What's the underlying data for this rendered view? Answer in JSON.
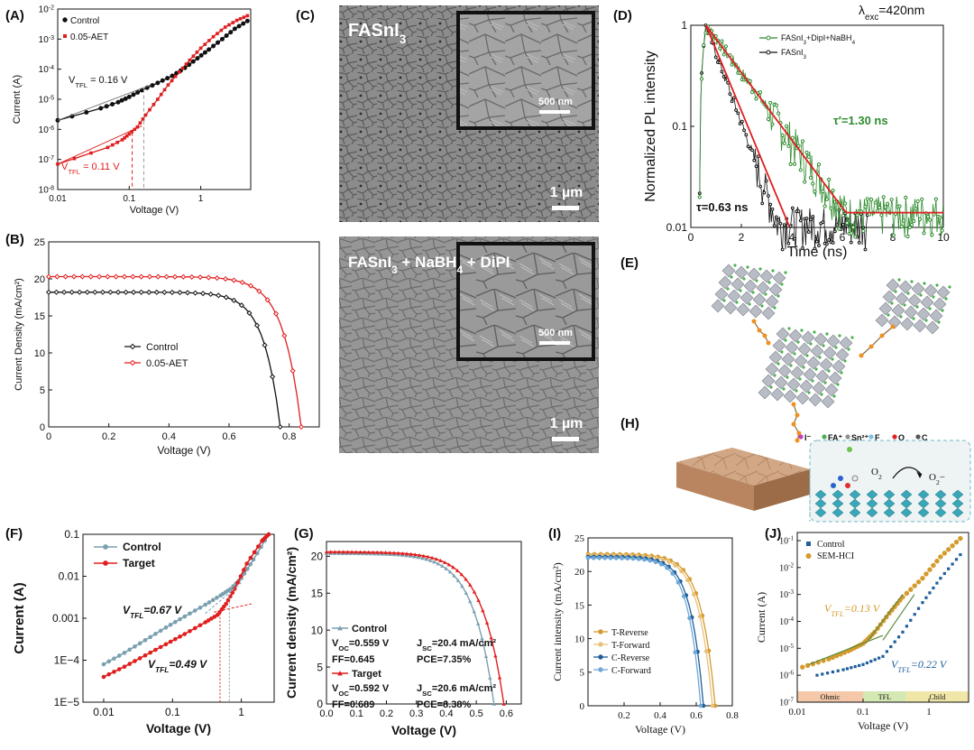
{
  "panel_labels": [
    "(A)",
    "(B)",
    "(C)",
    "(D)",
    "(E)",
    "(H)",
    "(F)",
    "(G)",
    "(I)",
    "(J)"
  ],
  "colors": {
    "control": "#111111",
    "red": "#e01e1e",
    "green": "#2e8b2e",
    "gray_blue": "#7aa0b0",
    "gold": "#d49a2c",
    "light_gold": "#e8c07a",
    "dark_blue": "#1f5e9a",
    "light_blue": "#6fa8d8"
  },
  "chart_data": [
    {
      "id": "A",
      "type": "scatter",
      "xlabel": "Voltage (V)",
      "ylabel": "Current (A)",
      "x_scale": "log",
      "y_scale": "log",
      "xlim": [
        0.01,
        5
      ],
      "ylim": [
        1e-08,
        0.01
      ],
      "xticks": [
        "0.01",
        "0.1",
        "1"
      ],
      "yticks": [
        "10-8",
        "10-7",
        "10-6",
        "10-5",
        "10-4",
        "10-3",
        "10-2"
      ],
      "series": [
        {
          "name": "Control",
          "x": [
            0.01,
            0.04,
            0.07,
            0.1,
            0.15,
            0.25,
            0.4,
            0.6,
            0.9,
            1.3,
            2,
            3,
            4.5
          ],
          "y": [
            2e-06,
            5e-06,
            8e-06,
            1.2e-05,
            2e-05,
            3.5e-05,
            6e-05,
            0.00011,
            0.00023,
            0.00045,
            0.001,
            0.0022,
            0.004
          ]
        },
        {
          "name": "0.05-AET",
          "x": [
            0.01,
            0.05,
            0.08,
            0.1,
            0.13,
            0.17,
            0.25,
            0.35,
            0.5,
            0.7,
            1,
            1.5,
            2.2,
            3.2,
            4.5
          ],
          "y": [
            7e-08,
            2.5e-07,
            4.5e-07,
            7e-07,
            1.2e-06,
            3e-06,
            1e-05,
            3e-05,
            8e-05,
            0.0002,
            0.0005,
            0.0012,
            0.0025,
            0.0042,
            0.006
          ]
        }
      ],
      "annotations": [
        {
          "text": "V",
          "sub": "TFL",
          "rest": " = 0.16 V"
        },
        {
          "text": "V",
          "sub": "TFL",
          "rest": " = 0.11 V"
        }
      ]
    },
    {
      "id": "B",
      "type": "line",
      "xlabel": "Voltage (V)",
      "ylabel": "Current Density (mA/cm²)",
      "xlim": [
        0,
        0.9
      ],
      "ylim": [
        0,
        25
      ],
      "xticks": [
        "0",
        "0.2",
        "0.4",
        "0.6",
        "0.8"
      ],
      "yticks": [
        "0",
        "5",
        "10",
        "15",
        "20",
        "25"
      ],
      "series": [
        {
          "name": "Control",
          "jsc": 18.2,
          "voc": 0.77
        },
        {
          "name": "0.05-AET",
          "jsc": 20.3,
          "voc": 0.84
        }
      ]
    },
    {
      "id": "C",
      "type": "image",
      "images": [
        {
          "title": "FASnI",
          "sub": "3",
          "rest": "",
          "scale": "1 µm",
          "inset_scale": "500 nm"
        },
        {
          "title": "FASnI",
          "sub": "3",
          "rest": " + NaBH",
          "sub2": "4",
          "rest2": " + DiPI",
          "scale": "1 µm",
          "inset_scale": "500 nm"
        }
      ]
    },
    {
      "id": "D",
      "type": "scatter",
      "xlabel": "Time (ns)",
      "ylabel": "Normalized PL intensity",
      "xlim": [
        0,
        10
      ],
      "ylim": [
        0.01,
        1
      ],
      "y_scale": "log",
      "xticks": [
        "0",
        "2",
        "4",
        "6",
        "8",
        "10"
      ],
      "yticks": [
        "0.01",
        "0.1",
        "1"
      ],
      "header": "λ",
      "header_sub": "exc",
      "header_rest": "=420nm",
      "series": [
        {
          "name": "FASnI3+DipI+NaBH4",
          "tau": 1.3,
          "label": "τ′=1.30 ns"
        },
        {
          "name": "FASnI3",
          "tau": 0.63,
          "label": "τ=0.63 ns"
        }
      ],
      "legend": [
        {
          "main": "FASnI",
          "s1": "3",
          "m2": "+DipI+NaBH",
          "s2": "4"
        },
        {
          "main": "FASnI",
          "s1": "3",
          "m2": "",
          "s2": ""
        }
      ]
    },
    {
      "id": "E",
      "type": "image",
      "legend": [
        "I⁻",
        "FA⁺",
        "Sn²⁺",
        "F",
        "O",
        "C"
      ]
    },
    {
      "id": "H",
      "type": "image",
      "labels": [
        "O",
        "2",
        "O",
        "2",
        "−"
      ]
    },
    {
      "id": "F",
      "type": "scatter",
      "xlabel": "Voltage (V)",
      "ylabel": "Current (A)",
      "x_scale": "log",
      "y_scale": "log",
      "xlim": [
        0.005,
        3
      ],
      "ylim": [
        1e-05,
        0.1
      ],
      "xticks": [
        "0.01",
        "0.1",
        "1"
      ],
      "yticks": [
        "1E−5",
        "1E−4",
        "0.001",
        "0.01",
        "0.1"
      ],
      "series": [
        {
          "name": "Control",
          "x": [
            0.01,
            0.02,
            0.04,
            0.08,
            0.15,
            0.3,
            0.5,
            0.7,
            1,
            1.5,
            2.5
          ],
          "y": [
            8e-05,
            0.00015,
            0.0003,
            0.0006,
            0.0011,
            0.0021,
            0.0035,
            0.005,
            0.009,
            0.025,
            0.1
          ]
        },
        {
          "name": "Target",
          "x": [
            0.01,
            0.02,
            0.04,
            0.08,
            0.15,
            0.3,
            0.45,
            0.6,
            0.8,
            1.2,
            2,
            2.5
          ],
          "y": [
            4e-05,
            7e-05,
            0.00013,
            0.00024,
            0.00042,
            0.0008,
            0.0012,
            0.0022,
            0.005,
            0.02,
            0.07,
            0.1
          ]
        }
      ],
      "annotations": [
        {
          "text": "V",
          "sub": "TFL",
          "rest": "=0.67 V"
        },
        {
          "text": "V",
          "sub": "TFL",
          "rest": "=0.49 V"
        }
      ]
    },
    {
      "id": "G",
      "type": "line",
      "xlabel": "Voltage (V)",
      "ylabel": "Current density (mA/cm²)",
      "xlim": [
        0,
        0.65
      ],
      "ylim": [
        0,
        22
      ],
      "xticks": [
        "0.0",
        "0.1",
        "0.2",
        "0.3",
        "0.4",
        "0.5",
        "0.6"
      ],
      "yticks": [
        "0",
        "5",
        "10",
        "15",
        "20"
      ],
      "series": [
        {
          "name": "Control",
          "voc": 0.559,
          "jsc": 20.4,
          "ff": 0.645,
          "pce": 7.35
        },
        {
          "name": "Target",
          "voc": 0.592,
          "jsc": 20.6,
          "ff": 0.689,
          "pce": 8.38
        }
      ],
      "stats": [
        {
          "voc_label": "OC",
          "voc": "=0.559 V",
          "jsc_label": "SC",
          "jsc": "=20.4 mA/cm²",
          "ff": "FF=0.645",
          "pce": "PCE=7.35%"
        },
        {
          "voc_label": "OC",
          "voc": "=0.592 V",
          "jsc_label": "SC",
          "jsc": "=20.6 mA/cm²",
          "ff": "FF=0.689",
          "pce": "PCE=8.38%"
        }
      ]
    },
    {
      "id": "I",
      "type": "line",
      "xlabel": "Voltage (V)",
      "ylabel": "Current intensity (mA/cm²)",
      "xlim": [
        0,
        0.8
      ],
      "ylim": [
        0,
        25
      ],
      "xticks": [
        "0.2",
        "0.4",
        "0.6",
        "0.8"
      ],
      "yticks": [
        "0",
        "5",
        "10",
        "15",
        "20",
        "25"
      ],
      "series": [
        {
          "name": "T-Reverse",
          "jsc": 22.6,
          "voc": 0.705
        },
        {
          "name": "T-Forward",
          "jsc": 22.4,
          "voc": 0.69
        },
        {
          "name": "C-Reverse",
          "jsc": 22.2,
          "voc": 0.64
        },
        {
          "name": "C-Forward",
          "jsc": 22.0,
          "voc": 0.625
        }
      ]
    },
    {
      "id": "J",
      "type": "scatter",
      "xlabel": "Voltage (V)",
      "ylabel": "Current (A)",
      "x_scale": "log",
      "y_scale": "log",
      "xlim": [
        0.01,
        4
      ],
      "ylim": [
        1e-07,
        0.2
      ],
      "xticks": [
        "0.01",
        "0.1",
        "1"
      ],
      "yticks": [
        "10-7",
        "10-6",
        "10-5",
        "10-4",
        "10-3",
        "10-2",
        "10-1"
      ],
      "series": [
        {
          "name": "Control",
          "x": [
            0.02,
            0.05,
            0.1,
            0.2,
            0.4,
            0.8,
            1.5,
            3
          ],
          "y": [
            1e-06,
            1.6e-06,
            2.5e-06,
            5e-06,
            4e-05,
            0.0005,
            0.004,
            0.03
          ]
        },
        {
          "name": "SEM-HCI",
          "x": [
            0.012,
            0.03,
            0.06,
            0.1,
            0.15,
            0.25,
            0.4,
            0.8,
            1.5,
            3
          ],
          "y": [
            2e-06,
            4e-06,
            8e-06,
            1.5e-05,
            4e-05,
            0.0002,
            0.0008,
            0.004,
            0.025,
            0.12
          ]
        }
      ],
      "regions": [
        "Ohmic",
        "TFL",
        "Child"
      ],
      "annotations": [
        {
          "text": "V",
          "sub": "TFL",
          "rest": "=0.13 V"
        },
        {
          "text": "V",
          "sub": "TFL",
          "rest": "=0.22 V"
        }
      ]
    }
  ]
}
